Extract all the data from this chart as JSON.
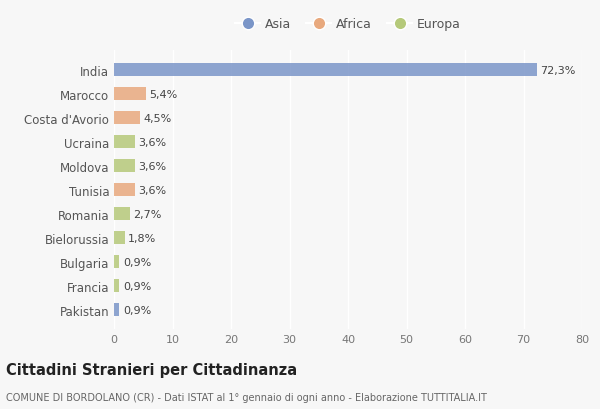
{
  "countries": [
    "India",
    "Marocco",
    "Costa d'Avorio",
    "Ucraina",
    "Moldova",
    "Tunisia",
    "Romania",
    "Bielorussia",
    "Bulgaria",
    "Francia",
    "Pakistan"
  ],
  "values": [
    72.3,
    5.4,
    4.5,
    3.6,
    3.6,
    3.6,
    2.7,
    1.8,
    0.9,
    0.9,
    0.9
  ],
  "labels": [
    "72,3%",
    "5,4%",
    "4,5%",
    "3,6%",
    "3,6%",
    "3,6%",
    "2,7%",
    "1,8%",
    "0,9%",
    "0,9%",
    "0,9%"
  ],
  "continents": [
    "Asia",
    "Africa",
    "Africa",
    "Europa",
    "Europa",
    "Africa",
    "Europa",
    "Europa",
    "Europa",
    "Europa",
    "Asia"
  ],
  "colors": {
    "Asia": "#7b96c8",
    "Africa": "#e8a97e",
    "Europa": "#b5c97a"
  },
  "legend_labels": [
    "Asia",
    "Africa",
    "Europa"
  ],
  "xlim": [
    0,
    80
  ],
  "xticks": [
    0,
    10,
    20,
    30,
    40,
    50,
    60,
    70,
    80
  ],
  "title": "Cittadini Stranieri per Cittadinanza",
  "subtitle": "COMUNE DI BORDOLANO (CR) - Dati ISTAT al 1° gennaio di ogni anno - Elaborazione TUTTITALIA.IT",
  "background_color": "#f7f7f7",
  "grid_color": "#ffffff",
  "bar_height": 0.55,
  "label_fontsize": 8.0,
  "ytick_fontsize": 8.5,
  "xtick_fontsize": 8.0,
  "legend_fontsize": 9.0,
  "title_fontsize": 10.5,
  "subtitle_fontsize": 7.0
}
